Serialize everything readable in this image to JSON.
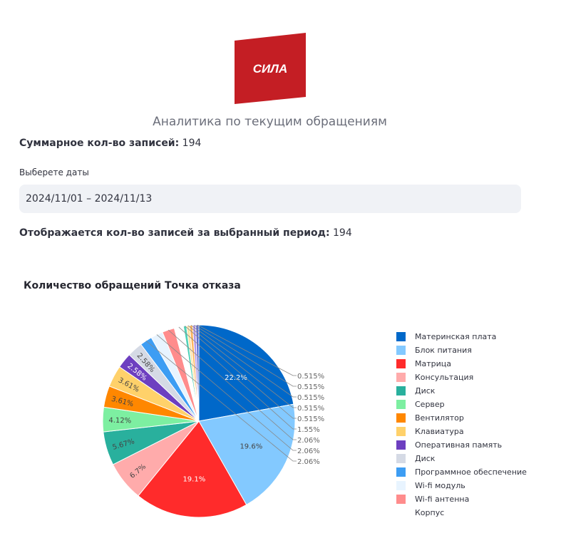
{
  "brand": {
    "logo_text": "СИЛА",
    "logo_color": "#c41e24"
  },
  "header": {
    "subtitle": "Аналитика по текущим обращениям"
  },
  "summary": {
    "total_label": "Суммарное кол-во записей:",
    "total_value": "194"
  },
  "date_filter": {
    "label": "Выберете даты",
    "value": "2024/11/01 – 2024/11/13"
  },
  "period": {
    "label": "Отображается кол-во записей за выбранный период:",
    "value": "194"
  },
  "chart_data": {
    "type": "pie",
    "title": "Количество обращений Точка отказа",
    "slices": [
      {
        "label": "Материнская плата",
        "value": 22.2,
        "text": "22.2%",
        "color": "#0068c9"
      },
      {
        "label": "Блок питания",
        "value": 19.6,
        "text": "19.6%",
        "color": "#83c9ff"
      },
      {
        "label": "Матрица",
        "value": 19.1,
        "text": "19.1%",
        "color": "#ff2b2b"
      },
      {
        "label": "Консультация",
        "value": 6.7,
        "text": "6.7%",
        "color": "#ffabab"
      },
      {
        "label": "Диск",
        "value": 5.67,
        "text": "5.67%",
        "color": "#29b09d"
      },
      {
        "label": "Сервер",
        "value": 4.12,
        "text": "4.12%",
        "color": "#7defa1"
      },
      {
        "label": "Вентилятор",
        "value": 3.61,
        "text": "3.61%",
        "color": "#ff8700"
      },
      {
        "label": "Клавиатура",
        "value": 3.61,
        "text": "3.61%",
        "color": "#ffd16a"
      },
      {
        "label": "Оперативная память",
        "value": 2.58,
        "text": "2.58%",
        "color": "#6d3fc0"
      },
      {
        "label": "Диск",
        "value": 2.58,
        "text": "2.58%",
        "color": "#d5dae5"
      },
      {
        "label": "Программное обеспечение",
        "value": 2.06,
        "text": "2.06%",
        "color": "#3d9df3"
      },
      {
        "label": "Wi-fi модуль",
        "value": 2.06,
        "text": "2.06%",
        "color": "#e8f4ff"
      },
      {
        "label": "Wi-fi антенна",
        "value": 2.06,
        "text": "2.06%",
        "color": "#ff8c8c"
      },
      {
        "label": "Корпус",
        "value": 1.55,
        "text": "1.55%",
        "color": "#ffffff"
      },
      {
        "label": "",
        "value": 0.515,
        "text": "0.515%",
        "color": "#4fd1b7"
      },
      {
        "label": "",
        "value": 0.515,
        "text": "0.515%",
        "color": "#ffe3a3"
      },
      {
        "label": "",
        "value": 0.515,
        "text": "0.515%",
        "color": "#ffb45c"
      },
      {
        "label": "",
        "value": 0.515,
        "text": "0.515%",
        "color": "#b497e6"
      },
      {
        "label": "",
        "value": 0.515,
        "text": "0.515%",
        "color": "#5d6dd4"
      }
    ],
    "legend_position": "right"
  }
}
